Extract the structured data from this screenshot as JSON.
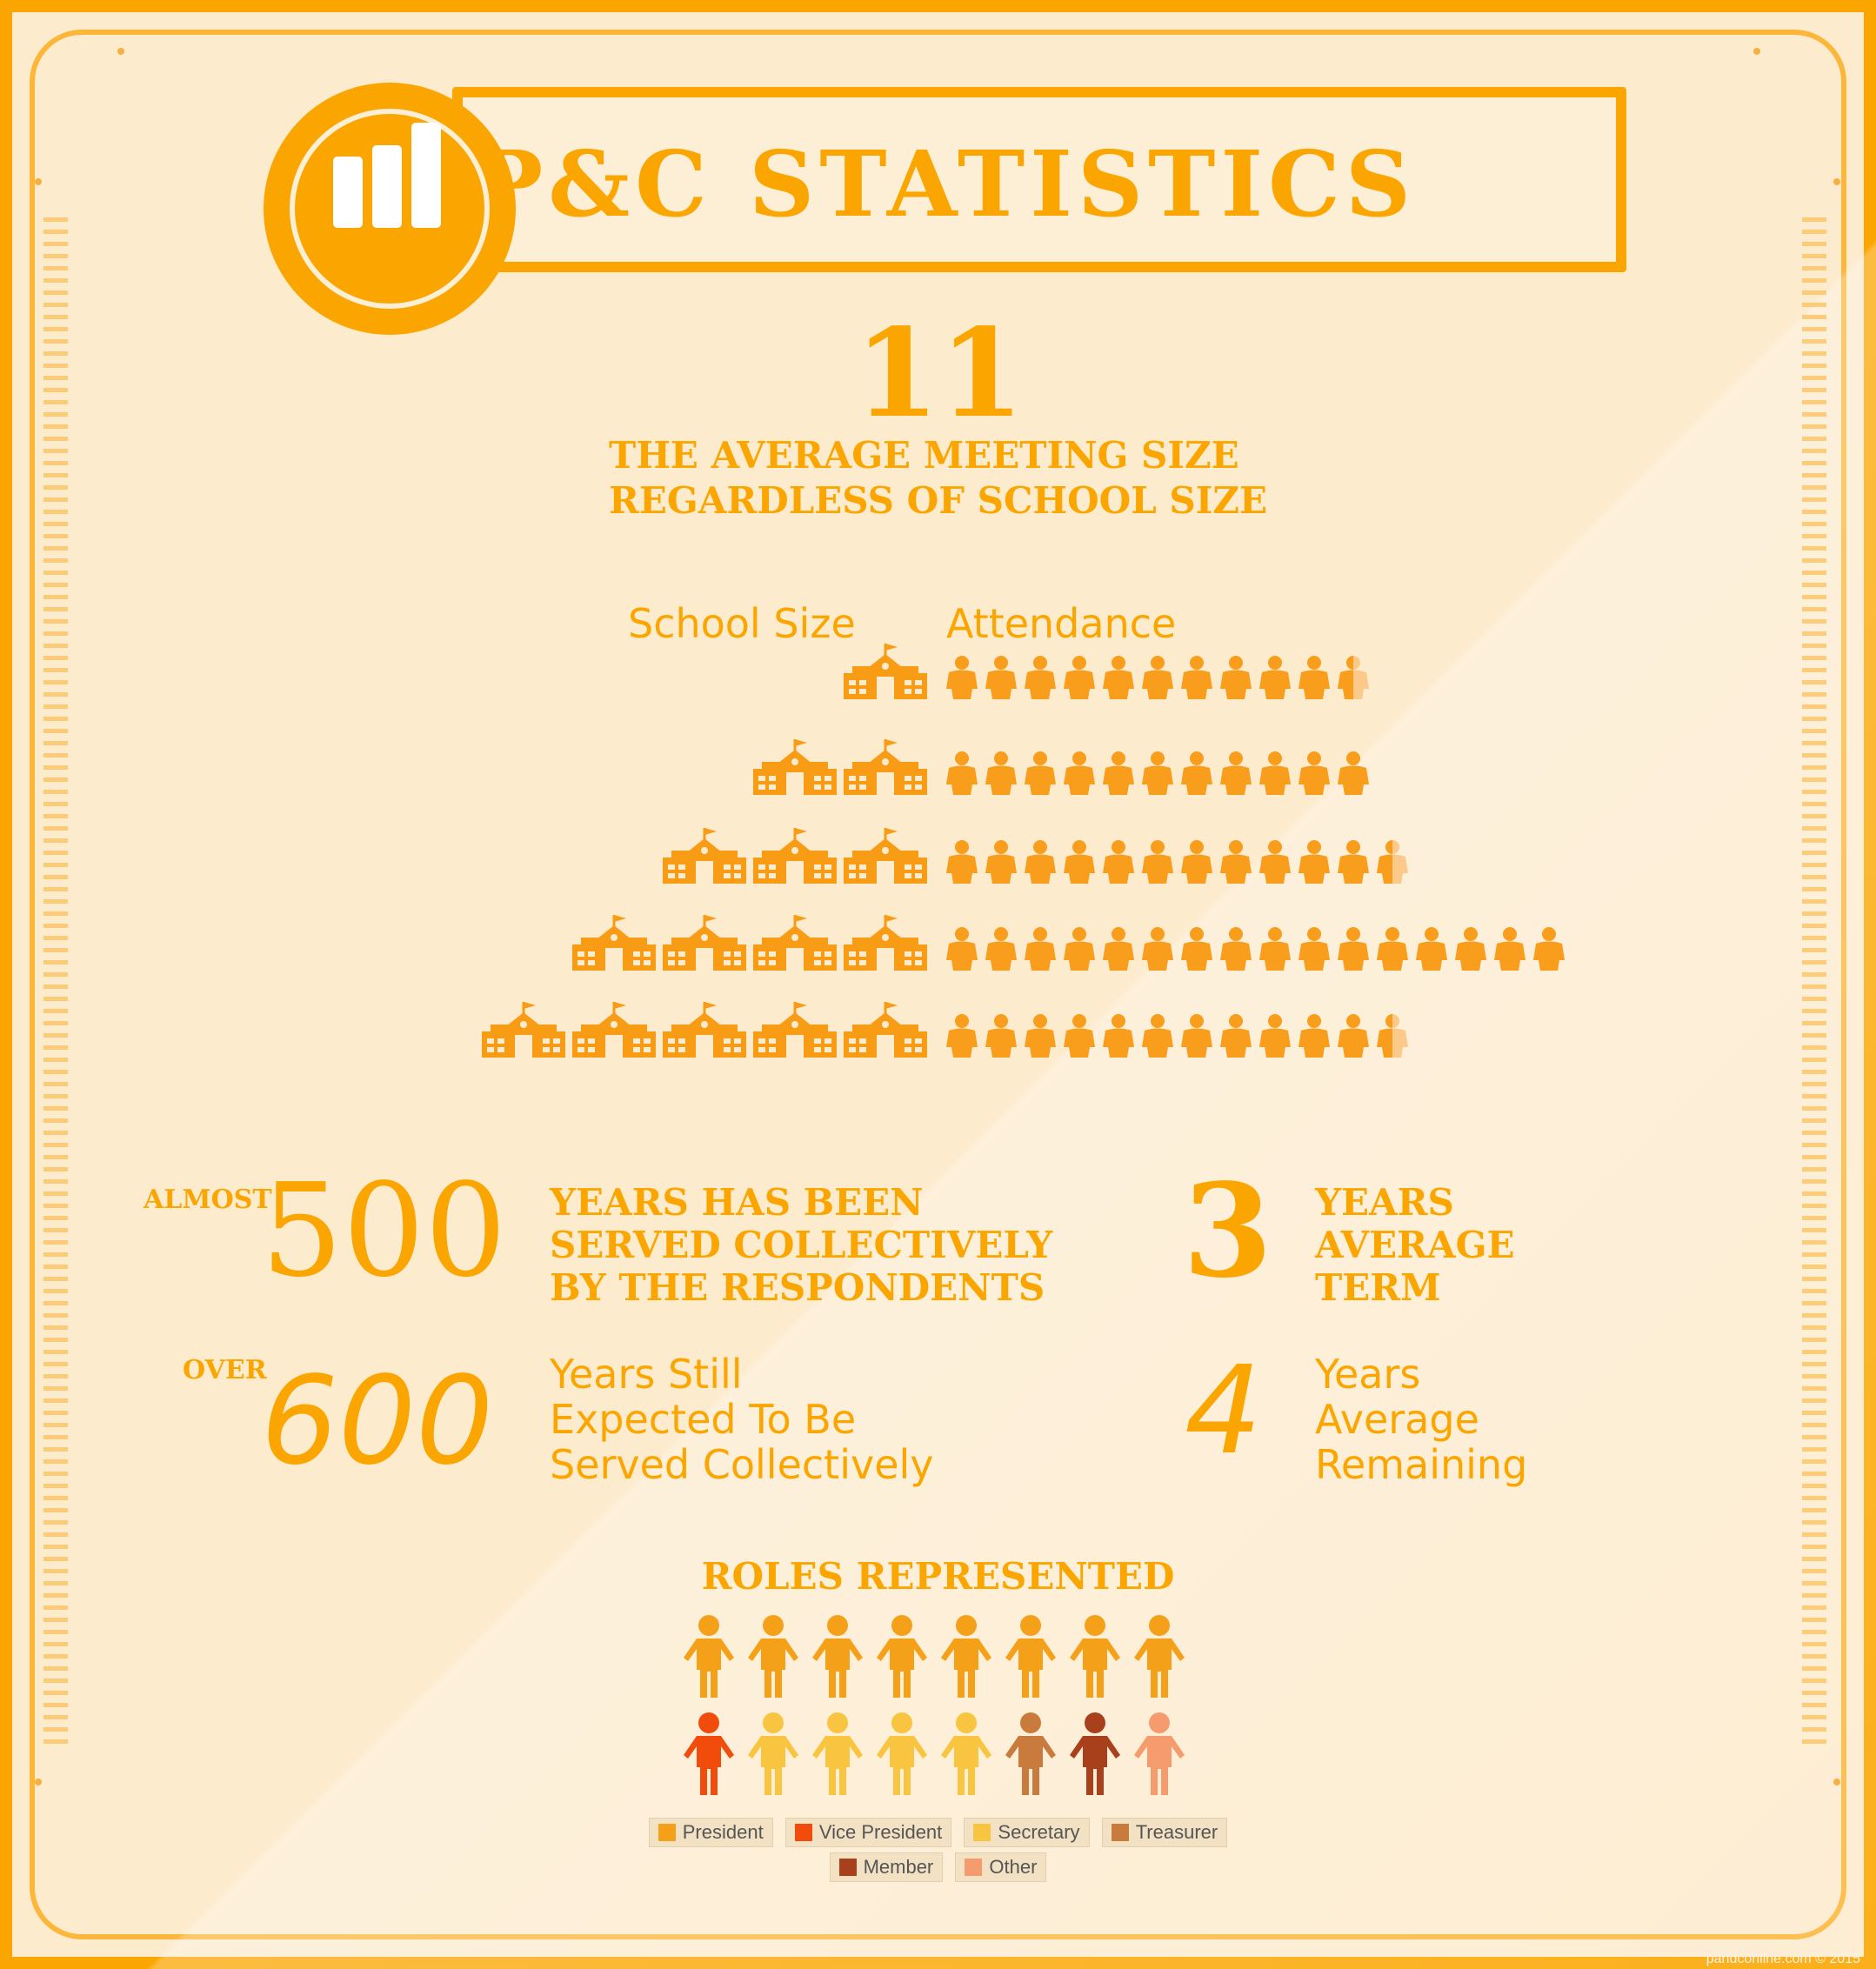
{
  "header": {
    "title": "P&C STATISTICS"
  },
  "meeting": {
    "number": "11",
    "line1": "THE AVERAGE MEETING SIZE",
    "line2": "REGARDLESS OF SCHOOL SIZE",
    "col_school": "School Size",
    "col_attendance": "Attendance",
    "rows": [
      {
        "schools": 1,
        "attendance": 10.5
      },
      {
        "schools": 2,
        "attendance": 11
      },
      {
        "schools": 3,
        "attendance": 11.5
      },
      {
        "schools": 4,
        "attendance": 16
      },
      {
        "schools": 5,
        "attendance": 11.5
      }
    ]
  },
  "stats": {
    "served": {
      "prefix": "ALMOST",
      "number": "500",
      "lines": [
        "YEARS HAS BEEN",
        "SERVED COLLECTIVELY",
        "BY THE RESPONDENTS"
      ]
    },
    "term": {
      "number": "3",
      "lines": [
        "YEARS",
        "AVERAGE",
        "TERM"
      ]
    },
    "expected": {
      "prefix": "OVER",
      "number": "600",
      "lines": [
        "Years Still",
        "Expected To Be",
        "Served Collectively"
      ]
    },
    "remaining": {
      "number": "4",
      "lines": [
        "Years",
        "Average",
        "Remaining"
      ]
    }
  },
  "roles": {
    "title": "ROLES REPRESENTED",
    "row1": [
      "President",
      "President",
      "President",
      "President",
      "President",
      "President",
      "President",
      "President"
    ],
    "row2": [
      "Vice President",
      "Secretary",
      "Secretary",
      "Secretary",
      "Secretary",
      "Treasurer",
      "Member",
      "Other"
    ],
    "colors": {
      "President": "#f5a019",
      "Vice President": "#f24c0d",
      "Secretary": "#f9c440",
      "Treasurer": "#c97b3e",
      "Member": "#a8401c",
      "Other": "#f59b6e"
    },
    "legend_row1": [
      "President",
      "Vice President",
      "Secretary",
      "Treasurer"
    ],
    "legend_row2": [
      "Member",
      "Other"
    ]
  },
  "footer": {
    "credit": "pandconline.com © 2015"
  }
}
